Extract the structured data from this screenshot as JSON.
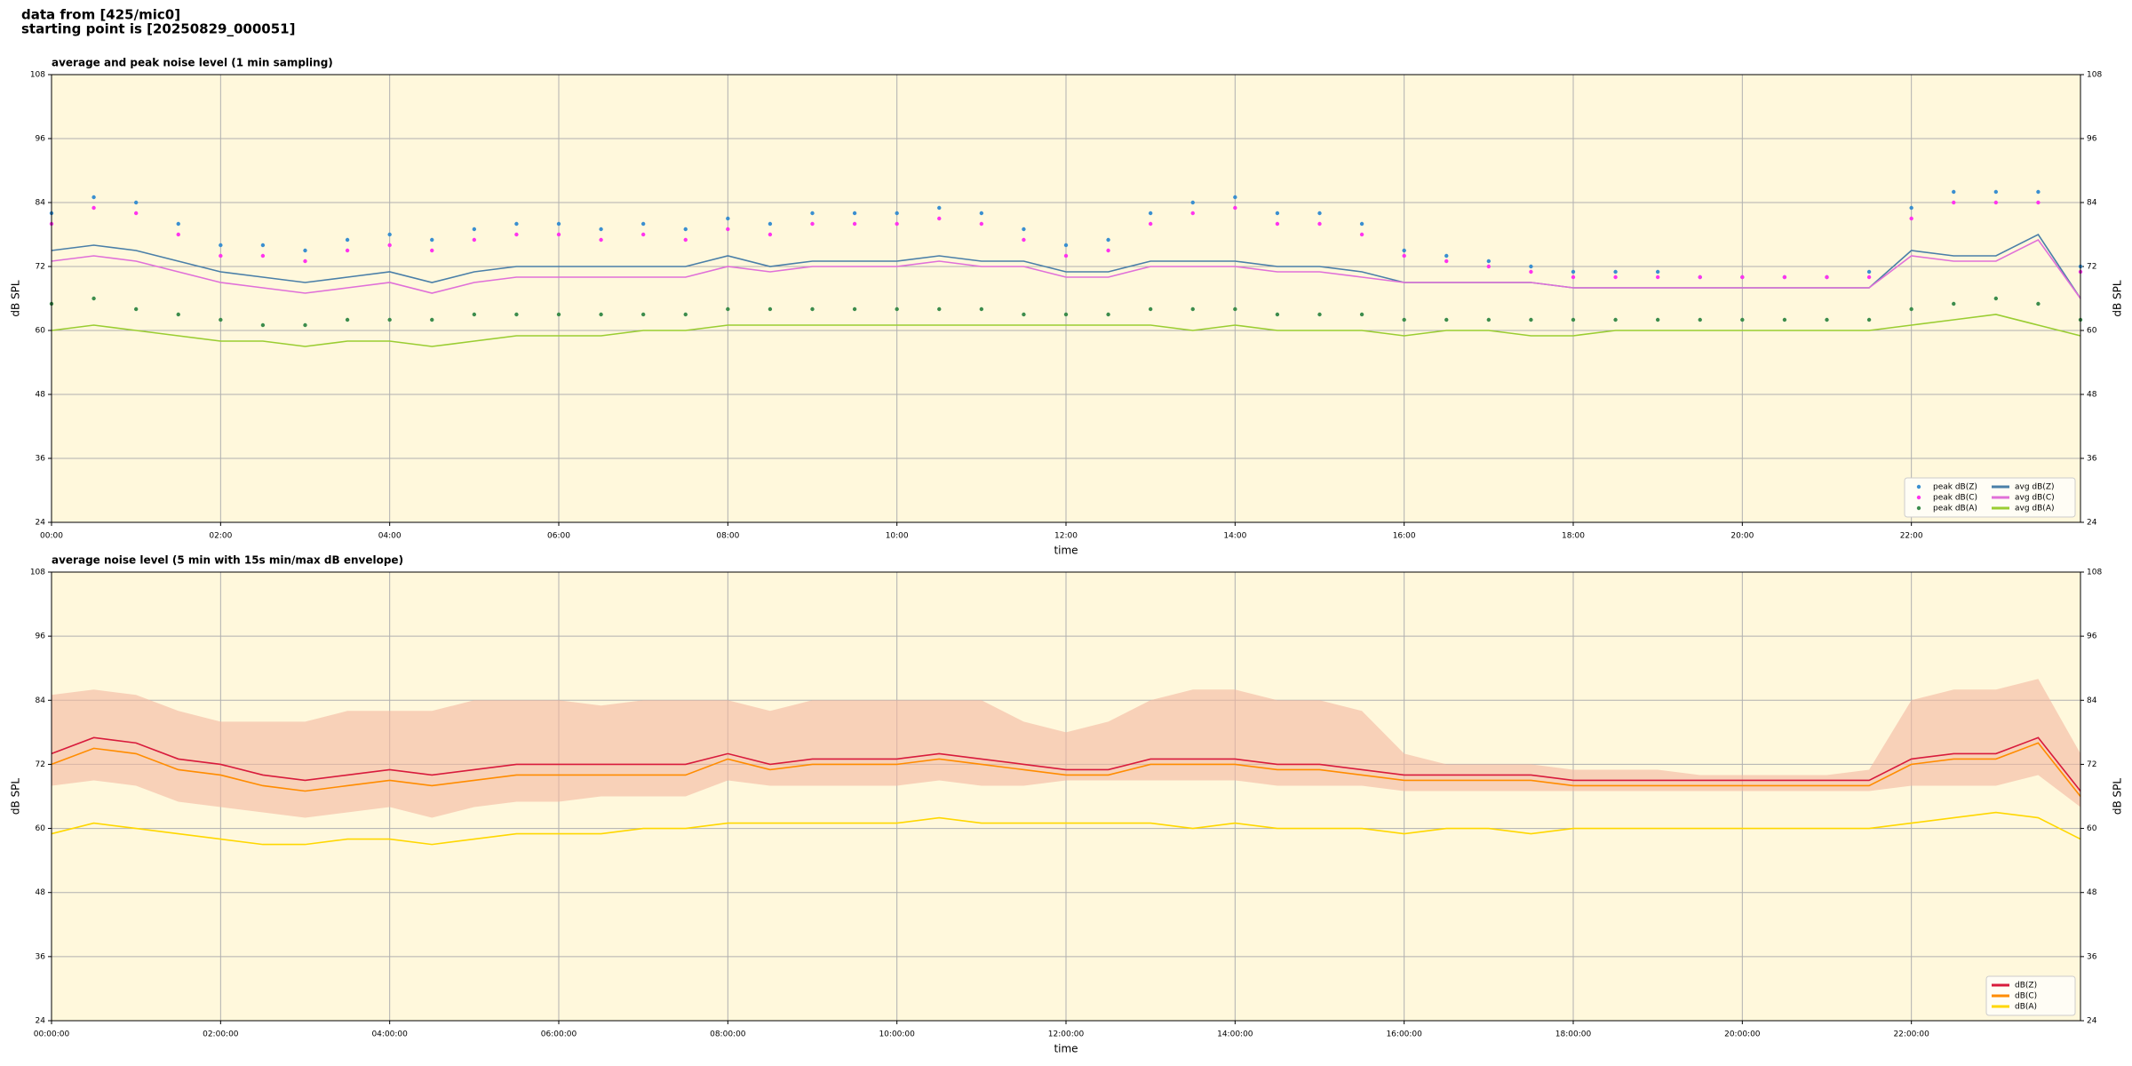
{
  "header": [
    "data from [425/mic0]",
    "starting point is [20250829_000051]"
  ],
  "chart_data": [
    {
      "type": "line",
      "title": "average and peak noise level (1 min sampling)",
      "xlabel": "time",
      "ylabel": "dB SPL",
      "x": [
        0,
        0.5,
        1,
        1.5,
        2,
        2.5,
        3,
        3.5,
        4,
        4.5,
        5,
        5.5,
        6,
        6.5,
        7,
        7.5,
        8,
        8.5,
        9,
        9.5,
        10,
        10.5,
        11,
        11.5,
        12,
        12.5,
        13,
        13.5,
        14,
        14.5,
        15,
        15.5,
        16,
        16.5,
        17,
        17.5,
        18,
        18.5,
        19,
        19.5,
        20,
        20.5,
        21,
        21.5,
        22,
        22.5,
        23,
        23.5,
        24
      ],
      "xlim": [
        0,
        24
      ],
      "xticks": [
        {
          "value": 0,
          "label": "00:00"
        },
        {
          "value": 2,
          "label": "02:00"
        },
        {
          "value": 4,
          "label": "04:00"
        },
        {
          "value": 6,
          "label": "06:00"
        },
        {
          "value": 8,
          "label": "08:00"
        },
        {
          "value": 10,
          "label": "10:00"
        },
        {
          "value": 12,
          "label": "12:00"
        },
        {
          "value": 14,
          "label": "14:00"
        },
        {
          "value": 16,
          "label": "16:00"
        },
        {
          "value": 18,
          "label": "18:00"
        },
        {
          "value": 20,
          "label": "20:00"
        },
        {
          "value": 22,
          "label": "22:00"
        }
      ],
      "ylim": [
        24,
        108
      ],
      "yticks": [
        24,
        36,
        48,
        60,
        72,
        84,
        96,
        108
      ],
      "grid": true,
      "legend": "lower right",
      "legend_columns": 2,
      "series": [
        {
          "name": "peak dB(Z)",
          "color": "#3a8fd0",
          "kind": "dots",
          "values": [
            82,
            85,
            84,
            80,
            76,
            76,
            75,
            77,
            78,
            77,
            79,
            80,
            80,
            79,
            80,
            79,
            81,
            80,
            82,
            82,
            82,
            83,
            82,
            79,
            76,
            77,
            82,
            84,
            85,
            82,
            82,
            80,
            75,
            74,
            73,
            72,
            71,
            71,
            71,
            70,
            70,
            70,
            70,
            71,
            83,
            86,
            86,
            86,
            72
          ]
        },
        {
          "name": "peak dB(C)",
          "color": "#ff33ee",
          "kind": "dots",
          "values": [
            80,
            83,
            82,
            78,
            74,
            74,
            73,
            75,
            76,
            75,
            77,
            78,
            78,
            77,
            78,
            77,
            79,
            78,
            80,
            80,
            80,
            81,
            80,
            77,
            74,
            75,
            80,
            82,
            83,
            80,
            80,
            78,
            74,
            73,
            72,
            71,
            70,
            70,
            70,
            70,
            70,
            70,
            70,
            70,
            81,
            84,
            84,
            84,
            71
          ]
        },
        {
          "name": "peak dB(A)",
          "color": "#3c8c4c",
          "kind": "dots",
          "values": [
            65,
            66,
            64,
            63,
            62,
            61,
            61,
            62,
            62,
            62,
            63,
            63,
            63,
            63,
            63,
            63,
            64,
            64,
            64,
            64,
            64,
            64,
            64,
            63,
            63,
            63,
            64,
            64,
            64,
            63,
            63,
            63,
            62,
            62,
            62,
            62,
            62,
            62,
            62,
            62,
            62,
            62,
            62,
            62,
            64,
            65,
            66,
            65,
            62
          ]
        },
        {
          "name": "avg dB(Z)",
          "color": "#4a7fa8",
          "kind": "line",
          "values": [
            75,
            76,
            75,
            73,
            71,
            70,
            69,
            70,
            71,
            69,
            71,
            72,
            72,
            72,
            72,
            72,
            74,
            72,
            73,
            73,
            73,
            74,
            73,
            73,
            71,
            71,
            73,
            73,
            73,
            72,
            72,
            71,
            69,
            69,
            69,
            69,
            68,
            68,
            68,
            68,
            68,
            68,
            68,
            68,
            75,
            74,
            74,
            78,
            66
          ]
        },
        {
          "name": "avg dB(C)",
          "color": "#e070d8",
          "kind": "line",
          "values": [
            73,
            74,
            73,
            71,
            69,
            68,
            67,
            68,
            69,
            67,
            69,
            70,
            70,
            70,
            70,
            70,
            72,
            71,
            72,
            72,
            72,
            73,
            72,
            72,
            70,
            70,
            72,
            72,
            72,
            71,
            71,
            70,
            69,
            69,
            69,
            69,
            68,
            68,
            68,
            68,
            68,
            68,
            68,
            68,
            74,
            73,
            73,
            77,
            66
          ]
        },
        {
          "name": "avg dB(A)",
          "color": "#9acd32",
          "kind": "line",
          "values": [
            60,
            61,
            60,
            59,
            58,
            58,
            57,
            58,
            58,
            57,
            58,
            59,
            59,
            59,
            60,
            60,
            61,
            61,
            61,
            61,
            61,
            61,
            61,
            61,
            61,
            61,
            61,
            60,
            61,
            60,
            60,
            60,
            59,
            60,
            60,
            59,
            59,
            60,
            60,
            60,
            60,
            60,
            60,
            60,
            61,
            62,
            63,
            61,
            59
          ]
        }
      ]
    },
    {
      "type": "line",
      "title": "average noise level (5 min with 15s min/max dB envelope)",
      "xlabel": "time",
      "ylabel": "dB SPL",
      "x": [
        0,
        0.5,
        1,
        1.5,
        2,
        2.5,
        3,
        3.5,
        4,
        4.5,
        5,
        5.5,
        6,
        6.5,
        7,
        7.5,
        8,
        8.5,
        9,
        9.5,
        10,
        10.5,
        11,
        11.5,
        12,
        12.5,
        13,
        13.5,
        14,
        14.5,
        15,
        15.5,
        16,
        16.5,
        17,
        17.5,
        18,
        18.5,
        19,
        19.5,
        20,
        20.5,
        21,
        21.5,
        22,
        22.5,
        23,
        23.5,
        24
      ],
      "xlim": [
        0,
        24
      ],
      "xticks": [
        {
          "value": 0,
          "label": "00:00:00"
        },
        {
          "value": 2,
          "label": "02:00:00"
        },
        {
          "value": 4,
          "label": "04:00:00"
        },
        {
          "value": 6,
          "label": "06:00:00"
        },
        {
          "value": 8,
          "label": "08:00:00"
        },
        {
          "value": 10,
          "label": "10:00:00"
        },
        {
          "value": 12,
          "label": "12:00:00"
        },
        {
          "value": 14,
          "label": "14:00:00"
        },
        {
          "value": 16,
          "label": "16:00:00"
        },
        {
          "value": 18,
          "label": "18:00:00"
        },
        {
          "value": 20,
          "label": "20:00:00"
        },
        {
          "value": 22,
          "label": "22:00:00"
        }
      ],
      "ylim": [
        24,
        108
      ],
      "yticks": [
        24,
        36,
        48,
        60,
        72,
        84,
        96,
        108
      ],
      "grid": true,
      "legend": "lower right",
      "legend_columns": 1,
      "envelope": {
        "color": "#f4b8a0",
        "max": [
          85,
          86,
          85,
          82,
          80,
          80,
          80,
          82,
          82,
          82,
          84,
          84,
          84,
          83,
          84,
          84,
          84,
          82,
          84,
          84,
          84,
          84,
          84,
          80,
          78,
          80,
          84,
          86,
          86,
          84,
          84,
          82,
          74,
          72,
          72,
          72,
          71,
          71,
          71,
          70,
          70,
          70,
          70,
          71,
          84,
          86,
          86,
          88,
          74
        ],
        "min": [
          68,
          69,
          68,
          65,
          64,
          63,
          62,
          63,
          64,
          62,
          64,
          65,
          65,
          66,
          66,
          66,
          69,
          68,
          68,
          68,
          68,
          69,
          68,
          68,
          69,
          69,
          69,
          69,
          69,
          68,
          68,
          68,
          67,
          67,
          67,
          67,
          67,
          67,
          67,
          67,
          67,
          67,
          67,
          67,
          68,
          68,
          68,
          70,
          64
        ]
      },
      "series": [
        {
          "name": "dB(Z)",
          "color": "#d81b3c",
          "kind": "line",
          "values": [
            74,
            77,
            76,
            73,
            72,
            70,
            69,
            70,
            71,
            70,
            71,
            72,
            72,
            72,
            72,
            72,
            74,
            72,
            73,
            73,
            73,
            74,
            73,
            72,
            71,
            71,
            73,
            73,
            73,
            72,
            72,
            71,
            70,
            70,
            70,
            70,
            69,
            69,
            69,
            69,
            69,
            69,
            69,
            69,
            73,
            74,
            74,
            77,
            67
          ]
        },
        {
          "name": "dB(C)",
          "color": "#ff8c00",
          "kind": "line",
          "values": [
            72,
            75,
            74,
            71,
            70,
            68,
            67,
            68,
            69,
            68,
            69,
            70,
            70,
            70,
            70,
            70,
            73,
            71,
            72,
            72,
            72,
            73,
            72,
            71,
            70,
            70,
            72,
            72,
            72,
            71,
            71,
            70,
            69,
            69,
            69,
            69,
            68,
            68,
            68,
            68,
            68,
            68,
            68,
            68,
            72,
            73,
            73,
            76,
            66
          ]
        },
        {
          "name": "dB(A)",
          "color": "#ffd700",
          "kind": "line",
          "values": [
            59,
            61,
            60,
            59,
            58,
            57,
            57,
            58,
            58,
            57,
            58,
            59,
            59,
            59,
            60,
            60,
            61,
            61,
            61,
            61,
            61,
            62,
            61,
            61,
            61,
            61,
            61,
            60,
            61,
            60,
            60,
            60,
            59,
            60,
            60,
            59,
            60,
            60,
            60,
            60,
            60,
            60,
            60,
            60,
            61,
            62,
            63,
            62,
            58
          ]
        }
      ]
    }
  ]
}
